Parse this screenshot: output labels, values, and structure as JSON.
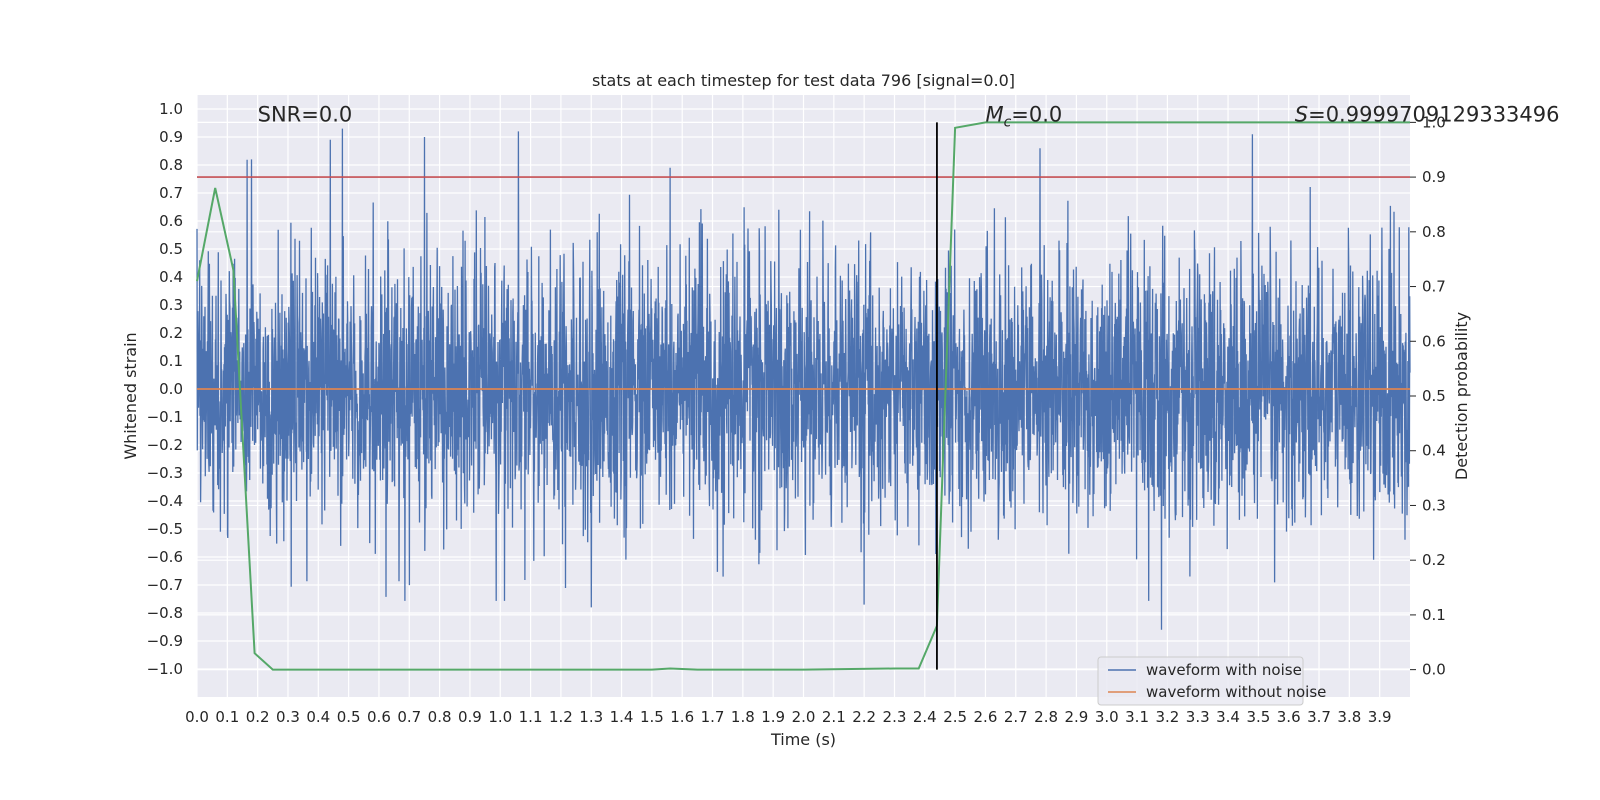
{
  "chart_data": {
    "type": "line",
    "title": "stats at each timestep for test data 796 [signal=0.0]",
    "xlabel": "Time (s)",
    "ylabel": "Whitened strain",
    "y2label": "Detection probability",
    "xlim": [
      0.0,
      4.0
    ],
    "ylim": [
      -1.1,
      1.05
    ],
    "y2lim": [
      -0.05,
      1.05
    ],
    "x_ticks": [
      "0.0",
      "0.1",
      "0.2",
      "0.3",
      "0.4",
      "0.5",
      "0.6",
      "0.7",
      "0.8",
      "0.9",
      "1.0",
      "1.1",
      "1.2",
      "1.3",
      "1.4",
      "1.5",
      "1.6",
      "1.7",
      "1.8",
      "1.9",
      "2.0",
      "2.1",
      "2.2",
      "2.3",
      "2.4",
      "2.5",
      "2.6",
      "2.7",
      "2.8",
      "2.9",
      "3.0",
      "3.1",
      "3.2",
      "3.3",
      "3.4",
      "3.5",
      "3.6",
      "3.7",
      "3.8",
      "3.9"
    ],
    "y_ticks": [
      "1.0",
      "0.9",
      "0.8",
      "0.7",
      "0.6",
      "0.5",
      "0.4",
      "0.3",
      "0.2",
      "0.1",
      "0.0",
      "−0.1",
      "−0.2",
      "−0.3",
      "−0.4",
      "−0.5",
      "−0.6",
      "−0.7",
      "−0.8",
      "−0.9",
      "−1.0"
    ],
    "y2_ticks": [
      "1.0",
      "0.9",
      "0.8",
      "0.7",
      "0.6",
      "0.5",
      "0.4",
      "0.3",
      "0.2",
      "0.1",
      "0.0"
    ],
    "grid": true,
    "legend_position": "lower-right",
    "series": [
      {
        "name": "waveform with noise",
        "color": "#4c72b0",
        "axis": "left",
        "style": "dense noise",
        "amplitude_range": [
          -0.86,
          0.93
        ],
        "peaks": [
          {
            "x": 0.18,
            "y": 0.82
          },
          {
            "x": 0.44,
            "y": 0.89
          },
          {
            "x": 0.48,
            "y": 0.93
          },
          {
            "x": 0.75,
            "y": 0.9
          },
          {
            "x": 1.06,
            "y": 0.92
          },
          {
            "x": 1.56,
            "y": 0.79
          },
          {
            "x": 2.78,
            "y": 0.86
          },
          {
            "x": 3.48,
            "y": 0.91
          },
          {
            "x": 3.18,
            "y": -0.86
          },
          {
            "x": 1.3,
            "y": -0.78
          },
          {
            "x": 2.2,
            "y": -0.77
          }
        ]
      },
      {
        "name": "waveform without noise",
        "color": "#dd8452",
        "axis": "left",
        "x": [
          0.0,
          4.0
        ],
        "y": [
          0.0,
          0.0
        ]
      },
      {
        "name": "detection probability",
        "color": "#55a868",
        "axis": "right",
        "x": [
          0.0,
          0.06,
          0.12,
          0.19,
          0.25,
          0.5,
          1.0,
          1.5,
          1.56,
          1.65,
          2.0,
          2.3,
          2.38,
          2.44,
          2.5,
          2.6,
          3.0,
          3.5,
          4.0
        ],
        "y": [
          0.71,
          0.88,
          0.73,
          0.03,
          0.0,
          0.0,
          0.0,
          0.0,
          0.002,
          0.0,
          0.0,
          0.002,
          0.002,
          0.08,
          0.99,
          1.0,
          1.0,
          1.0,
          1.0
        ]
      }
    ],
    "hlines": [
      {
        "y2": 0.9,
        "color": "#c44e52"
      }
    ],
    "vlines": [
      {
        "x": 2.44,
        "color": "#000000",
        "y2_range": [
          0.0,
          1.0
        ]
      }
    ],
    "annotations": [
      {
        "text": "SNR=0.0",
        "x": 0.2,
        "y2": 1.0
      },
      {
        "text_symbol": "M",
        "text_sub": "c",
        "text_rest": "=0.0",
        "x": 2.6,
        "y2": 1.0
      },
      {
        "text_symbol": "S",
        "text_rest": "=0.9999709129333496",
        "x": 3.62,
        "y2": 1.0
      }
    ]
  }
}
